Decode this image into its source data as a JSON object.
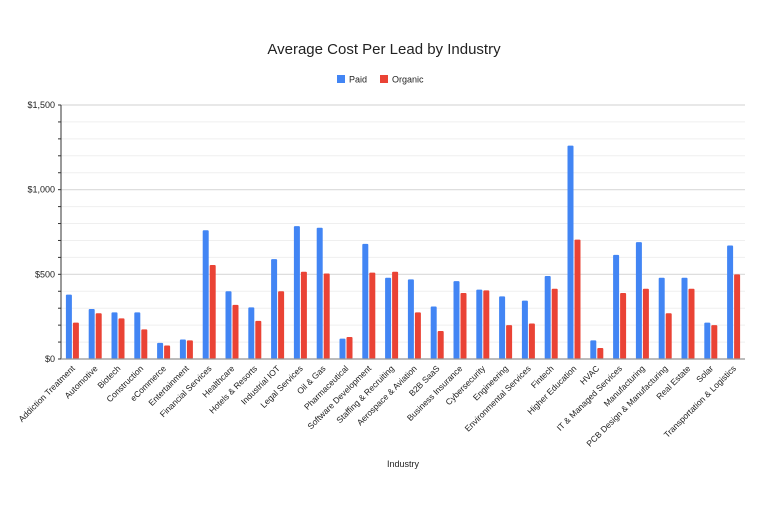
{
  "chart_data": {
    "type": "bar",
    "title": "Average Cost Per Lead by Industry",
    "xlabel": "Industry",
    "ylabel": "",
    "ylim": [
      0,
      1500
    ],
    "yticks": [
      0,
      500,
      1000,
      1500
    ],
    "ytick_labels": [
      "$0",
      "$500",
      "$1,000",
      "$1,500"
    ],
    "minor_grid_step": 100,
    "grid": true,
    "legend_position": "top-center",
    "categories": [
      "Addiction Treatment",
      "Automotive",
      "Biotech",
      "Construction",
      "eCommerce",
      "Entertainment",
      "Financial Services",
      "Healthcare",
      "Hotels & Resorts",
      "Industrial IOT",
      "Legal Services",
      "Oil & Gas",
      "Pharmaceutical",
      "Software Development",
      "Staffing & Recruiting",
      "Aerospace & Aviation",
      "B2B SaaS",
      "Business Insurance",
      "Cybersecurity",
      "Engineering",
      "Environmental Services",
      "Fintech",
      "Higher Education",
      "HVAC",
      "IT & Managed Services",
      "Manufacturing",
      "PCB Design & Manufacturing",
      "Real Estate",
      "Solar",
      "Transportation & Logistics"
    ],
    "series": [
      {
        "name": "Paid",
        "color": "#4285f4",
        "values": [
          380,
          295,
          275,
          275,
          95,
          115,
          760,
          400,
          305,
          590,
          785,
          775,
          120,
          680,
          480,
          470,
          310,
          460,
          410,
          370,
          345,
          490,
          1260,
          110,
          615,
          690,
          480,
          480,
          215,
          670
        ]
      },
      {
        "name": "Organic",
        "color": "#ea4335",
        "values": [
          215,
          270,
          240,
          175,
          80,
          110,
          555,
          320,
          225,
          400,
          515,
          505,
          130,
          510,
          515,
          275,
          165,
          390,
          405,
          200,
          210,
          415,
          705,
          65,
          390,
          415,
          270,
          415,
          200,
          500
        ]
      }
    ]
  }
}
